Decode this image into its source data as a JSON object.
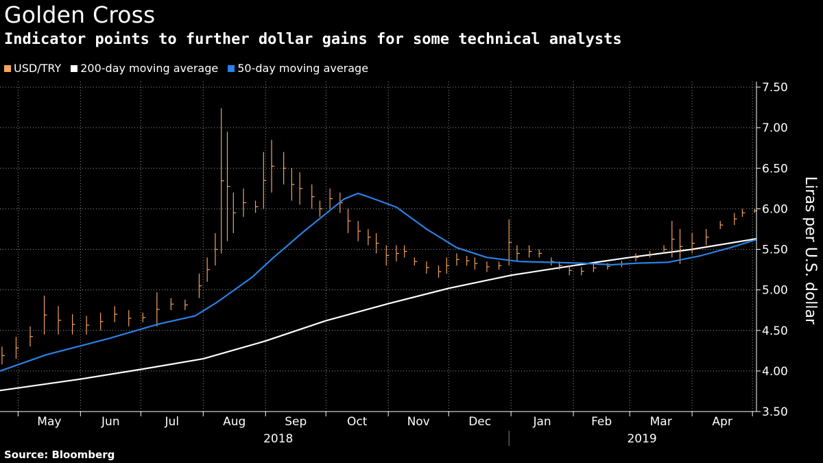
{
  "title": "Golden Cross",
  "subtitle": "Indicator points to further dollar gains for some technical analysts",
  "source": "Source: Bloomberg",
  "colors": {
    "usdtry": "#f5a55b",
    "ma200": "#ffffff",
    "ma50": "#2a82e6",
    "grid": "#9a9a9a"
  },
  "legend": [
    {
      "label": "USD/TRY",
      "color": "#f5a55b"
    },
    {
      "label": "200-day moving average",
      "color": "#ffffff"
    },
    {
      "label": "50-day moving average",
      "color": "#2a82e6"
    }
  ],
  "chart_data": {
    "type": "line",
    "ylabel": "Liras per U.S. dollar",
    "ylim": [
      3.5,
      7.5
    ],
    "yticks": [
      "3.50",
      "4.00",
      "4.50",
      "5.00",
      "5.50",
      "6.00",
      "6.50",
      "7.00",
      "7.50"
    ],
    "x_months": [
      "May",
      "Jun",
      "Jul",
      "Aug",
      "Sep",
      "Oct",
      "Nov",
      "Dec",
      "Jan",
      "Feb",
      "Mar",
      "Apr"
    ],
    "x_years": [
      "2018",
      "2019"
    ],
    "x_range": [
      "2018-04-22",
      "2019-05-03"
    ],
    "grid": true,
    "legend_position": "top-left",
    "series": [
      {
        "name": "USD/TRY",
        "style": "bars",
        "points": [
          [
            "2018-04-23",
            4.08,
            4.3
          ],
          [
            "2018-04-30",
            4.15,
            4.42
          ],
          [
            "2018-05-07",
            4.3,
            4.55
          ],
          [
            "2018-05-14",
            4.45,
            4.93
          ],
          [
            "2018-05-21",
            4.45,
            4.8
          ],
          [
            "2018-05-28",
            4.45,
            4.7
          ],
          [
            "2018-06-04",
            4.45,
            4.68
          ],
          [
            "2018-06-11",
            4.5,
            4.72
          ],
          [
            "2018-06-18",
            4.6,
            4.8
          ],
          [
            "2018-06-25",
            4.55,
            4.75
          ],
          [
            "2018-07-02",
            4.6,
            4.72
          ],
          [
            "2018-07-09",
            4.55,
            4.97
          ],
          [
            "2018-07-16",
            4.75,
            4.9
          ],
          [
            "2018-07-23",
            4.75,
            4.88
          ],
          [
            "2018-07-30",
            4.9,
            5.2
          ],
          [
            "2018-08-03",
            5.1,
            5.4
          ],
          [
            "2018-08-07",
            5.3,
            5.7
          ],
          [
            "2018-08-10",
            5.45,
            7.24
          ],
          [
            "2018-08-13",
            5.6,
            6.95
          ],
          [
            "2018-08-16",
            5.7,
            6.2
          ],
          [
            "2018-08-21",
            5.9,
            6.25
          ],
          [
            "2018-08-27",
            5.95,
            6.1
          ],
          [
            "2018-08-31",
            6.0,
            6.7
          ],
          [
            "2018-09-04",
            6.2,
            6.85
          ],
          [
            "2018-09-10",
            6.3,
            6.7
          ],
          [
            "2018-09-14",
            6.1,
            6.5
          ],
          [
            "2018-09-18",
            6.05,
            6.45
          ],
          [
            "2018-09-24",
            6.0,
            6.3
          ],
          [
            "2018-09-28",
            5.9,
            6.1
          ],
          [
            "2018-10-03",
            6.0,
            6.25
          ],
          [
            "2018-10-08",
            5.95,
            6.2
          ],
          [
            "2018-10-12",
            5.7,
            6.0
          ],
          [
            "2018-10-17",
            5.6,
            5.85
          ],
          [
            "2018-10-22",
            5.55,
            5.75
          ],
          [
            "2018-10-26",
            5.45,
            5.7
          ],
          [
            "2018-10-31",
            5.3,
            5.55
          ],
          [
            "2018-11-05",
            5.35,
            5.55
          ],
          [
            "2018-11-09",
            5.4,
            5.55
          ],
          [
            "2018-11-14",
            5.3,
            5.4
          ],
          [
            "2018-11-20",
            5.2,
            5.35
          ],
          [
            "2018-11-26",
            5.15,
            5.3
          ],
          [
            "2018-11-30",
            5.2,
            5.4
          ],
          [
            "2018-12-05",
            5.3,
            5.45
          ],
          [
            "2018-12-10",
            5.3,
            5.42
          ],
          [
            "2018-12-14",
            5.25,
            5.4
          ],
          [
            "2018-12-20",
            5.22,
            5.35
          ],
          [
            "2018-12-26",
            5.25,
            5.35
          ],
          [
            "2018-12-31",
            5.3,
            5.87
          ],
          [
            "2019-01-04",
            5.35,
            5.55
          ],
          [
            "2019-01-10",
            5.4,
            5.55
          ],
          [
            "2019-01-15",
            5.4,
            5.5
          ],
          [
            "2019-01-21",
            5.3,
            5.4
          ],
          [
            "2019-01-25",
            5.25,
            5.35
          ],
          [
            "2019-01-30",
            5.18,
            5.3
          ],
          [
            "2019-02-05",
            5.18,
            5.28
          ],
          [
            "2019-02-11",
            5.22,
            5.32
          ],
          [
            "2019-02-18",
            5.25,
            5.33
          ],
          [
            "2019-02-25",
            5.28,
            5.36
          ],
          [
            "2019-03-04",
            5.35,
            5.45
          ],
          [
            "2019-03-11",
            5.4,
            5.48
          ],
          [
            "2019-03-18",
            5.45,
            5.55
          ],
          [
            "2019-03-22",
            5.4,
            5.85
          ],
          [
            "2019-03-26",
            5.32,
            5.75
          ],
          [
            "2019-04-01",
            5.45,
            5.7
          ],
          [
            "2019-04-08",
            5.55,
            5.75
          ],
          [
            "2019-04-15",
            5.75,
            5.85
          ],
          [
            "2019-04-22",
            5.8,
            5.95
          ],
          [
            "2019-04-26",
            5.9,
            6.0
          ],
          [
            "2019-05-02",
            5.95,
            6.0
          ]
        ]
      },
      {
        "name": "200-day moving average",
        "style": "line",
        "points": [
          [
            "2018-04-22",
            3.76
          ],
          [
            "2018-06-01",
            3.9
          ],
          [
            "2018-07-01",
            4.02
          ],
          [
            "2018-08-01",
            4.15
          ],
          [
            "2018-09-01",
            4.37
          ],
          [
            "2018-10-01",
            4.62
          ],
          [
            "2018-11-01",
            4.83
          ],
          [
            "2018-12-01",
            5.02
          ],
          [
            "2019-01-01",
            5.18
          ],
          [
            "2019-02-01",
            5.3
          ],
          [
            "2019-03-01",
            5.4
          ],
          [
            "2019-04-01",
            5.5
          ],
          [
            "2019-05-03",
            5.63
          ]
        ]
      },
      {
        "name": "50-day moving average",
        "style": "line",
        "points": [
          [
            "2018-04-22",
            4.0
          ],
          [
            "2018-05-15",
            4.2
          ],
          [
            "2018-06-15",
            4.4
          ],
          [
            "2018-07-10",
            4.58
          ],
          [
            "2018-07-28",
            4.68
          ],
          [
            "2018-08-08",
            4.85
          ],
          [
            "2018-08-25",
            5.15
          ],
          [
            "2018-09-05",
            5.4
          ],
          [
            "2018-09-20",
            5.72
          ],
          [
            "2018-10-03",
            5.98
          ],
          [
            "2018-10-10",
            6.12
          ],
          [
            "2018-10-17",
            6.19
          ],
          [
            "2018-10-24",
            6.13
          ],
          [
            "2018-11-05",
            6.02
          ],
          [
            "2018-11-20",
            5.75
          ],
          [
            "2018-12-05",
            5.52
          ],
          [
            "2018-12-20",
            5.4
          ],
          [
            "2019-01-05",
            5.35
          ],
          [
            "2019-01-20",
            5.34
          ],
          [
            "2019-02-05",
            5.33
          ],
          [
            "2019-02-20",
            5.31
          ],
          [
            "2019-03-05",
            5.33
          ],
          [
            "2019-03-20",
            5.34
          ],
          [
            "2019-04-05",
            5.42
          ],
          [
            "2019-04-20",
            5.52
          ],
          [
            "2019-05-03",
            5.62
          ]
        ]
      }
    ]
  }
}
